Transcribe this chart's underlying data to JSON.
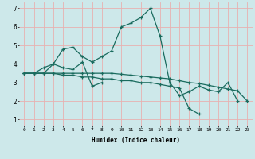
{
  "xlabel": "Humidex (Indice chaleur)",
  "xlim": [
    -0.5,
    23.5
  ],
  "ylim": [
    0.7,
    7.3
  ],
  "yticks": [
    1,
    2,
    3,
    4,
    5,
    6,
    7
  ],
  "xticks": [
    0,
    1,
    2,
    3,
    4,
    5,
    6,
    7,
    8,
    9,
    10,
    11,
    12,
    13,
    14,
    15,
    16,
    17,
    18,
    19,
    20,
    21,
    22,
    23
  ],
  "bg_color": "#cde8ea",
  "grid_color": "#e8b0b0",
  "line_color": "#1a6b5e",
  "line1_x": [
    0,
    1,
    2,
    3,
    4,
    5,
    6,
    7,
    8,
    9,
    10,
    11,
    12,
    13,
    14,
    15,
    16,
    17,
    18,
    19,
    20,
    21,
    22
  ],
  "line1_y": [
    3.5,
    3.5,
    3.5,
    4.0,
    4.8,
    4.9,
    4.4,
    4.1,
    4.4,
    4.7,
    6.0,
    6.2,
    6.5,
    7.0,
    5.5,
    3.0,
    2.3,
    2.5,
    2.8,
    2.6,
    2.5,
    3.0,
    2.0
  ],
  "line2_x": [
    0,
    1,
    2,
    3,
    4,
    5,
    6,
    7,
    8
  ],
  "line2_y": [
    3.5,
    3.5,
    3.8,
    4.0,
    3.8,
    3.7,
    4.1,
    2.8,
    3.0
  ],
  "line3_x": [
    0,
    1,
    2,
    3,
    4,
    5,
    6,
    7,
    8,
    9,
    10,
    11,
    12,
    13,
    14,
    15,
    16,
    17,
    18,
    19,
    20,
    21,
    22,
    23
  ],
  "line3_y": [
    3.5,
    3.5,
    3.5,
    3.5,
    3.5,
    3.5,
    3.5,
    3.5,
    3.5,
    3.5,
    3.45,
    3.4,
    3.35,
    3.3,
    3.25,
    3.2,
    3.1,
    3.0,
    2.95,
    2.85,
    2.75,
    2.65,
    2.55,
    2.0
  ],
  "line4_x": [
    0,
    1,
    2,
    3,
    4,
    5,
    6,
    7,
    8,
    9,
    10,
    11,
    12,
    13,
    14,
    15,
    16,
    17,
    18
  ],
  "line4_y": [
    3.5,
    3.5,
    3.5,
    3.5,
    3.4,
    3.4,
    3.3,
    3.3,
    3.2,
    3.2,
    3.1,
    3.1,
    3.0,
    3.0,
    2.9,
    2.8,
    2.7,
    1.6,
    1.3
  ]
}
